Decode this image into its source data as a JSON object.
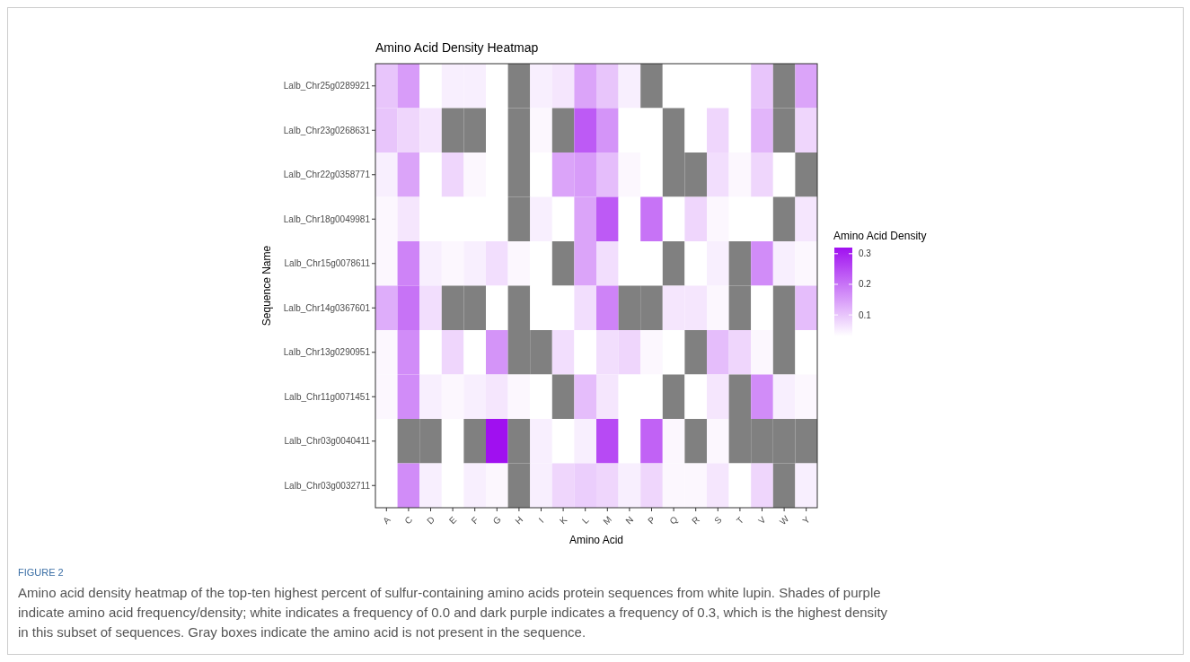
{
  "chart_data": {
    "type": "heatmap",
    "title": "Amino Acid Density Heatmap",
    "xlabel": "Amino Acid",
    "ylabel": "Sequence Name",
    "clabel": "Amino Acid Density",
    "categories": [
      "A",
      "C",
      "D",
      "E",
      "F",
      "G",
      "H",
      "I",
      "K",
      "L",
      "M",
      "N",
      "P",
      "Q",
      "R",
      "S",
      "T",
      "V",
      "W",
      "Y"
    ],
    "y_categories": [
      "Lalb_Chr25g0289921",
      "Lalb_Chr23g0268631",
      "Lalb_Chr22g0358771",
      "Lalb_Chr18g0049981",
      "Lalb_Chr15g0078611",
      "Lalb_Chr14g0367601",
      "Lalb_Chr13g0290951",
      "Lalb_Chr11g0071451",
      "Lalb_Chr03g0040411",
      "Lalb_Chr03g0032711"
    ],
    "cells": [
      [
        0.1,
        0.15,
        0.03,
        0.05,
        0.05,
        0.03,
        null,
        0.05,
        0.06,
        0.14,
        0.1,
        0.05,
        null,
        0.03,
        0.03,
        0.03,
        0.03,
        0.1,
        null,
        0.14
      ],
      [
        0.1,
        0.08,
        0.06,
        null,
        null,
        0.03,
        null,
        0.04,
        null,
        0.23,
        0.16,
        0.03,
        0.03,
        null,
        0.03,
        0.08,
        0.03,
        0.12,
        null,
        0.08
      ],
      [
        0.05,
        0.14,
        0.03,
        0.08,
        0.04,
        0.03,
        null,
        0.03,
        0.14,
        0.15,
        0.11,
        0.04,
        0.03,
        null,
        null,
        0.07,
        0.04,
        0.08,
        0.03,
        null
      ],
      [
        0.04,
        0.06,
        0.03,
        0.03,
        0.03,
        0.03,
        null,
        0.05,
        0.03,
        0.14,
        0.23,
        0.03,
        0.2,
        0.03,
        0.08,
        0.04,
        0.03,
        0.03,
        null,
        0.06
      ],
      [
        0.04,
        0.18,
        0.05,
        0.04,
        0.05,
        0.07,
        0.04,
        0.03,
        null,
        0.14,
        0.07,
        0.03,
        0.03,
        null,
        0.03,
        0.05,
        null,
        0.17,
        0.05,
        0.04
      ],
      [
        0.13,
        0.2,
        0.07,
        null,
        null,
        0.03,
        null,
        0.03,
        0.03,
        0.07,
        0.18,
        null,
        null,
        0.06,
        0.06,
        0.04,
        null,
        0.03,
        null,
        0.11
      ],
      [
        0.04,
        0.17,
        0.03,
        0.08,
        0.03,
        0.16,
        null,
        null,
        0.07,
        0.03,
        0.07,
        0.08,
        0.04,
        0.03,
        null,
        0.11,
        0.08,
        0.04,
        null,
        0.03
      ],
      [
        0.04,
        0.17,
        0.05,
        0.04,
        0.05,
        0.06,
        0.04,
        0.03,
        null,
        0.11,
        0.06,
        0.03,
        0.03,
        null,
        0.03,
        0.06,
        null,
        0.17,
        0.05,
        0.04
      ],
      [
        0.03,
        null,
        null,
        0.03,
        null,
        0.32,
        null,
        0.05,
        0.03,
        0.05,
        0.25,
        0.03,
        0.22,
        0.04,
        null,
        0.04,
        null,
        null,
        null,
        null
      ],
      [
        0.03,
        0.17,
        0.05,
        0.03,
        0.05,
        0.04,
        null,
        0.05,
        0.08,
        0.09,
        0.08,
        0.05,
        0.08,
        0.04,
        0.04,
        0.06,
        0.03,
        0.08,
        null,
        0.05
      ]
    ],
    "colors": [
      "#ffffff",
      "#a010f0"
    ],
    "clim": [
      0.03,
      0.32
    ],
    "cticks": [
      0.1,
      0.2,
      0.3
    ],
    "annotations": [
      "FIGURE 2",
      "Amino acid density heatmap of the top-ten highest percent of sulfur-containing amino acids protein sequences from white lupin. Shades of purple indicate amino acid frequency/density; white indicates a frequency of 0.0 and dark purple indicates a frequency of 0.3, which is the highest density in this subset of sequences. Gray boxes indicate the amino acid is not present in the sequence."
    ]
  }
}
